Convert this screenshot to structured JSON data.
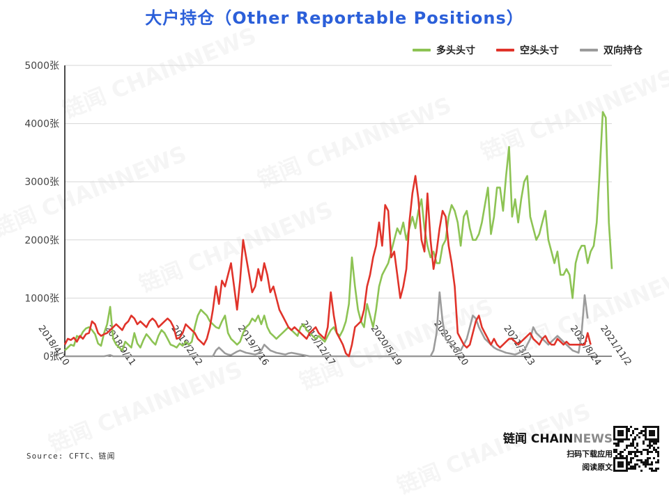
{
  "title": "大户持仓（Other Reportable Positions）",
  "legend": [
    {
      "name": "多头头寸",
      "color": "#8dc354"
    },
    {
      "name": "空头头寸",
      "color": "#e0332a"
    },
    {
      "name": "双向持仓",
      "color": "#9b9b9b"
    }
  ],
  "source": "Source: CFTC、链闻",
  "brand": {
    "name_a": "链闻 ",
    "name_b": "CHAIN",
    "name_c": "NEWS",
    "line1": "扫码下载应用",
    "line2": "阅读原文"
  },
  "watermark": "链闻 CHAINNEWS",
  "chart_data": {
    "type": "line",
    "ylim": [
      0,
      5000
    ],
    "y_ticks": [
      "0张",
      "1000张",
      "2000张",
      "3000张",
      "4000张",
      "5000张"
    ],
    "y_tick_values": [
      0,
      1000,
      2000,
      3000,
      4000,
      5000
    ],
    "x_tick_labels": [
      "2018/4/10",
      "2018/9/11",
      "2019/2/12",
      "2019/7/16",
      "2019/12/17",
      "2020/5/19",
      "2020/10/20",
      "2021/3/23",
      "2021/8/24",
      "2021/11/2"
    ],
    "x_tick_index": [
      0,
      22,
      44,
      66,
      88,
      110,
      132,
      154,
      176,
      186
    ],
    "grid": true,
    "legend_position": "top-right",
    "series": [
      {
        "name": "多头头寸",
        "color": "#8dc354",
        "values": [
          100,
          150,
          200,
          180,
          350,
          320,
          420,
          480,
          500,
          450,
          380,
          220,
          180,
          400,
          550,
          850,
          300,
          200,
          150,
          100,
          250,
          200,
          150,
          400,
          220,
          150,
          280,
          380,
          320,
          250,
          200,
          350,
          450,
          400,
          300,
          200,
          180,
          150,
          220,
          180,
          250,
          200,
          250,
          500,
          700,
          800,
          750,
          700,
          600,
          550,
          500,
          480,
          600,
          700,
          400,
          300,
          250,
          200,
          250,
          400,
          500,
          550,
          650,
          600,
          700,
          550,
          700,
          500,
          400,
          350,
          300,
          350,
          400,
          450,
          500,
          450,
          400,
          350,
          500,
          550,
          450,
          400,
          350,
          300,
          350,
          300,
          250,
          350,
          450,
          500,
          400,
          350,
          450,
          600,
          900,
          1700,
          1200,
          800,
          600,
          500,
          900,
          700,
          500,
          800,
          1200,
          1400,
          1500,
          1600,
          1800,
          2000,
          2200,
          2100,
          2300,
          2000,
          2200,
          2400,
          2200,
          2500,
          2700,
          2200,
          1900,
          1700,
          1800,
          1600,
          1600,
          1900,
          2000,
          2400,
          2600,
          2500,
          2300,
          1900,
          2400,
          2500,
          2200,
          2000,
          2000,
          2100,
          2300,
          2600,
          2900,
          2100,
          2400,
          2900,
          2900,
          2500,
          3100,
          3600,
          2400,
          2700,
          2300,
          2700,
          3000,
          3100,
          2400,
          2200,
          2000,
          2100,
          2300,
          2500,
          2000,
          1800,
          1600,
          1800,
          1400,
          1400,
          1500,
          1400,
          1000,
          1600,
          1800,
          1900,
          1900,
          1600,
          1800,
          1900,
          2300,
          3200,
          4200,
          4100,
          2300,
          1500
        ]
      },
      {
        "name": "空头头寸",
        "color": "#e0332a",
        "values": [
          200,
          300,
          280,
          320,
          250,
          350,
          300,
          380,
          400,
          600,
          550,
          400,
          350,
          380,
          400,
          450,
          500,
          550,
          500,
          450,
          550,
          600,
          700,
          650,
          550,
          600,
          550,
          500,
          600,
          650,
          600,
          500,
          550,
          600,
          650,
          600,
          500,
          300,
          320,
          400,
          550,
          500,
          450,
          400,
          300,
          250,
          200,
          300,
          500,
          800,
          1200,
          900,
          1300,
          1200,
          1400,
          1600,
          1200,
          800,
          1300,
          2000,
          1700,
          1400,
          1100,
          1200,
          1500,
          1300,
          1600,
          1400,
          1100,
          1200,
          1000,
          800,
          700,
          600,
          500,
          450,
          500,
          450,
          400,
          350,
          300,
          400,
          450,
          500,
          400,
          350,
          300,
          500,
          1100,
          700,
          400,
          300,
          200,
          50,
          0,
          200,
          500,
          550,
          600,
          800,
          1200,
          1400,
          1700,
          1900,
          2300,
          1900,
          2600,
          2500,
          1700,
          1800,
          1400,
          1000,
          1200,
          1500,
          2300,
          2800,
          3100,
          2700,
          2000,
          1800,
          2800,
          2000,
          1500,
          1800,
          2200,
          2500,
          2400,
          1900,
          1600,
          1200,
          400,
          300,
          200,
          150,
          200,
          400,
          600,
          700,
          500,
          400,
          300,
          200,
          300,
          200,
          150,
          200,
          250,
          300,
          300,
          250,
          200,
          250,
          300,
          350,
          400,
          300,
          250,
          200,
          300,
          350,
          250,
          200,
          200,
          300,
          250,
          200,
          250,
          200,
          200,
          200,
          200,
          200,
          200,
          400,
          200
        ]
      },
      {
        "name": "双向持仓",
        "color": "#9b9b9b",
        "values": [
          0,
          0,
          0,
          0,
          0,
          0,
          0,
          0,
          0,
          0,
          0,
          0,
          0,
          0,
          10,
          20,
          0,
          0,
          0,
          0,
          0,
          0,
          0,
          0,
          0,
          0,
          0,
          0,
          0,
          0,
          0,
          0,
          0,
          0,
          0,
          0,
          0,
          0,
          0,
          0,
          0,
          0,
          0,
          0,
          0,
          0,
          0,
          0,
          0,
          0,
          100,
          150,
          100,
          50,
          30,
          20,
          50,
          80,
          100,
          80,
          60,
          50,
          40,
          30,
          50,
          100,
          200,
          150,
          100,
          80,
          60,
          50,
          40,
          30,
          50,
          60,
          50,
          40,
          30,
          20,
          10,
          0,
          0,
          0,
          0,
          0,
          0,
          0,
          0,
          0,
          0,
          0,
          0,
          0,
          0,
          0,
          0,
          0,
          0,
          0,
          0,
          0,
          0,
          0,
          0,
          0,
          0,
          0,
          0,
          0,
          0,
          0,
          0,
          0,
          0,
          0,
          0,
          0,
          0,
          0,
          0,
          0,
          100,
          400,
          1100,
          600,
          300,
          250,
          200,
          150,
          100,
          100,
          200,
          300,
          500,
          700,
          650,
          500,
          400,
          300,
          250,
          200,
          150,
          120,
          100,
          80,
          60,
          50,
          40,
          30,
          50,
          80,
          100,
          200,
          300,
          500,
          400,
          350,
          300,
          250,
          200,
          250,
          300,
          350,
          300,
          250,
          200,
          150,
          100,
          80,
          60,
          400,
          1050,
          650
        ]
      }
    ]
  }
}
